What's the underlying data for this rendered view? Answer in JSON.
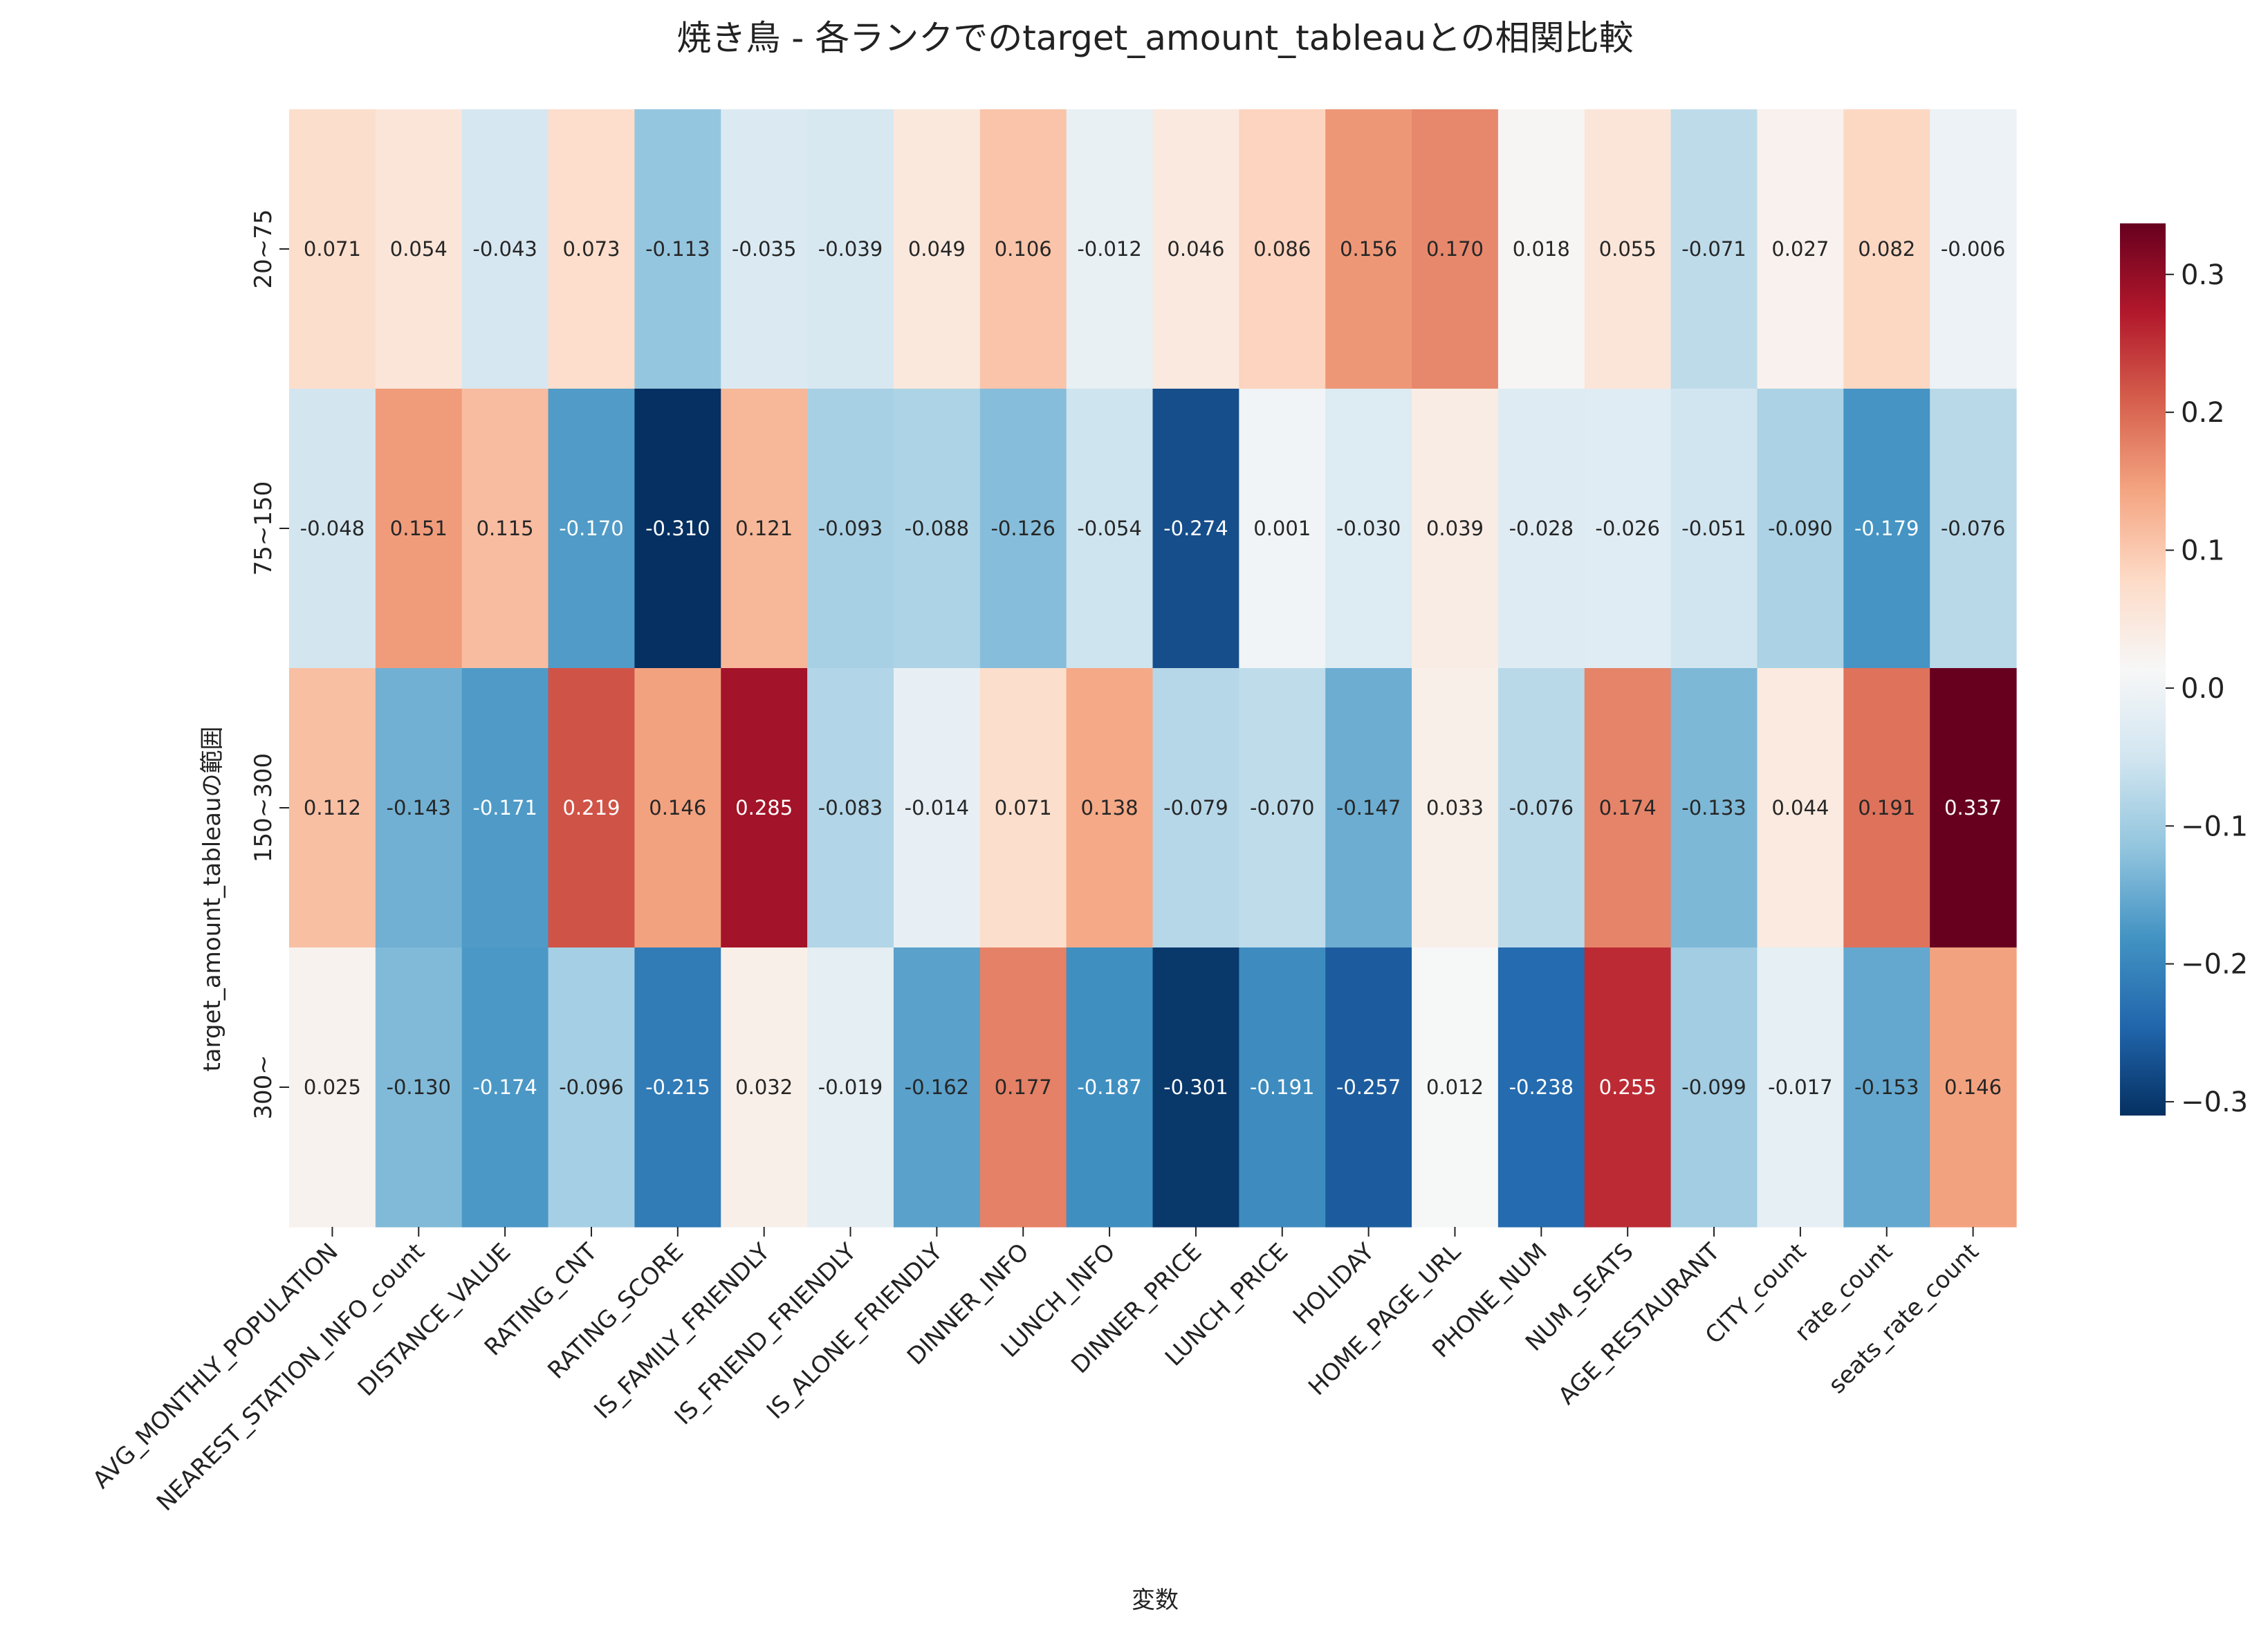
{
  "chart_data": {
    "type": "heatmap",
    "title": "焼き鳥 - 各ランクでのtarget_amount_tableauとの相関比較",
    "xlabel": "変数",
    "ylabel": "target_amount_tableauの範囲",
    "columns": [
      "AVG_MONTHLY_POPULATION",
      "NEAREST_STATION_INFO_count",
      "DISTANCE_VALUE",
      "RATING_CNT",
      "RATING_SCORE",
      "IS_FAMILY_FRIENDLY",
      "IS_FRIEND_FRIENDLY",
      "IS_ALONE_FRIENDLY",
      "DINNER_INFO",
      "LUNCH_INFO",
      "DINNER_PRICE",
      "LUNCH_PRICE",
      "HOLIDAY",
      "HOME_PAGE_URL",
      "PHONE_NUM",
      "NUM_SEATS",
      "AGE_RESTAURANT",
      "CITY_count",
      "rate_count",
      "seats_rate_count"
    ],
    "rows": [
      "20~75",
      "75~150",
      "150~300",
      "300~"
    ],
    "values": [
      [
        0.071,
        0.054,
        -0.043,
        0.073,
        -0.113,
        -0.035,
        -0.039,
        0.049,
        0.106,
        -0.012,
        0.046,
        0.086,
        0.156,
        0.17,
        0.018,
        0.055,
        -0.071,
        0.027,
        0.082,
        -0.006
      ],
      [
        -0.048,
        0.151,
        0.115,
        -0.17,
        -0.31,
        0.121,
        -0.093,
        -0.088,
        -0.126,
        -0.054,
        -0.274,
        0.001,
        -0.03,
        0.039,
        -0.028,
        -0.026,
        -0.051,
        -0.09,
        -0.179,
        -0.076
      ],
      [
        0.112,
        -0.143,
        -0.171,
        0.219,
        0.146,
        0.285,
        -0.083,
        -0.014,
        0.071,
        0.138,
        -0.079,
        -0.07,
        -0.147,
        0.033,
        -0.076,
        0.174,
        -0.133,
        0.044,
        0.191,
        0.337
      ],
      [
        0.025,
        -0.13,
        -0.174,
        -0.096,
        -0.215,
        0.032,
        -0.019,
        -0.162,
        0.177,
        -0.187,
        -0.301,
        -0.191,
        -0.257,
        0.012,
        -0.238,
        0.255,
        -0.099,
        -0.017,
        -0.153,
        0.146
      ]
    ],
    "colormap": "RdBu_r",
    "vmin": -0.31,
    "vmax": 0.337,
    "colorbar_ticks": [
      0.3,
      0.2,
      0.1,
      0.0,
      -0.1,
      -0.2,
      -0.3
    ],
    "colorbar_tick_labels": [
      "0.3",
      "0.2",
      "0.1",
      "0.0",
      "−0.1",
      "−0.2",
      "−0.3"
    ]
  }
}
